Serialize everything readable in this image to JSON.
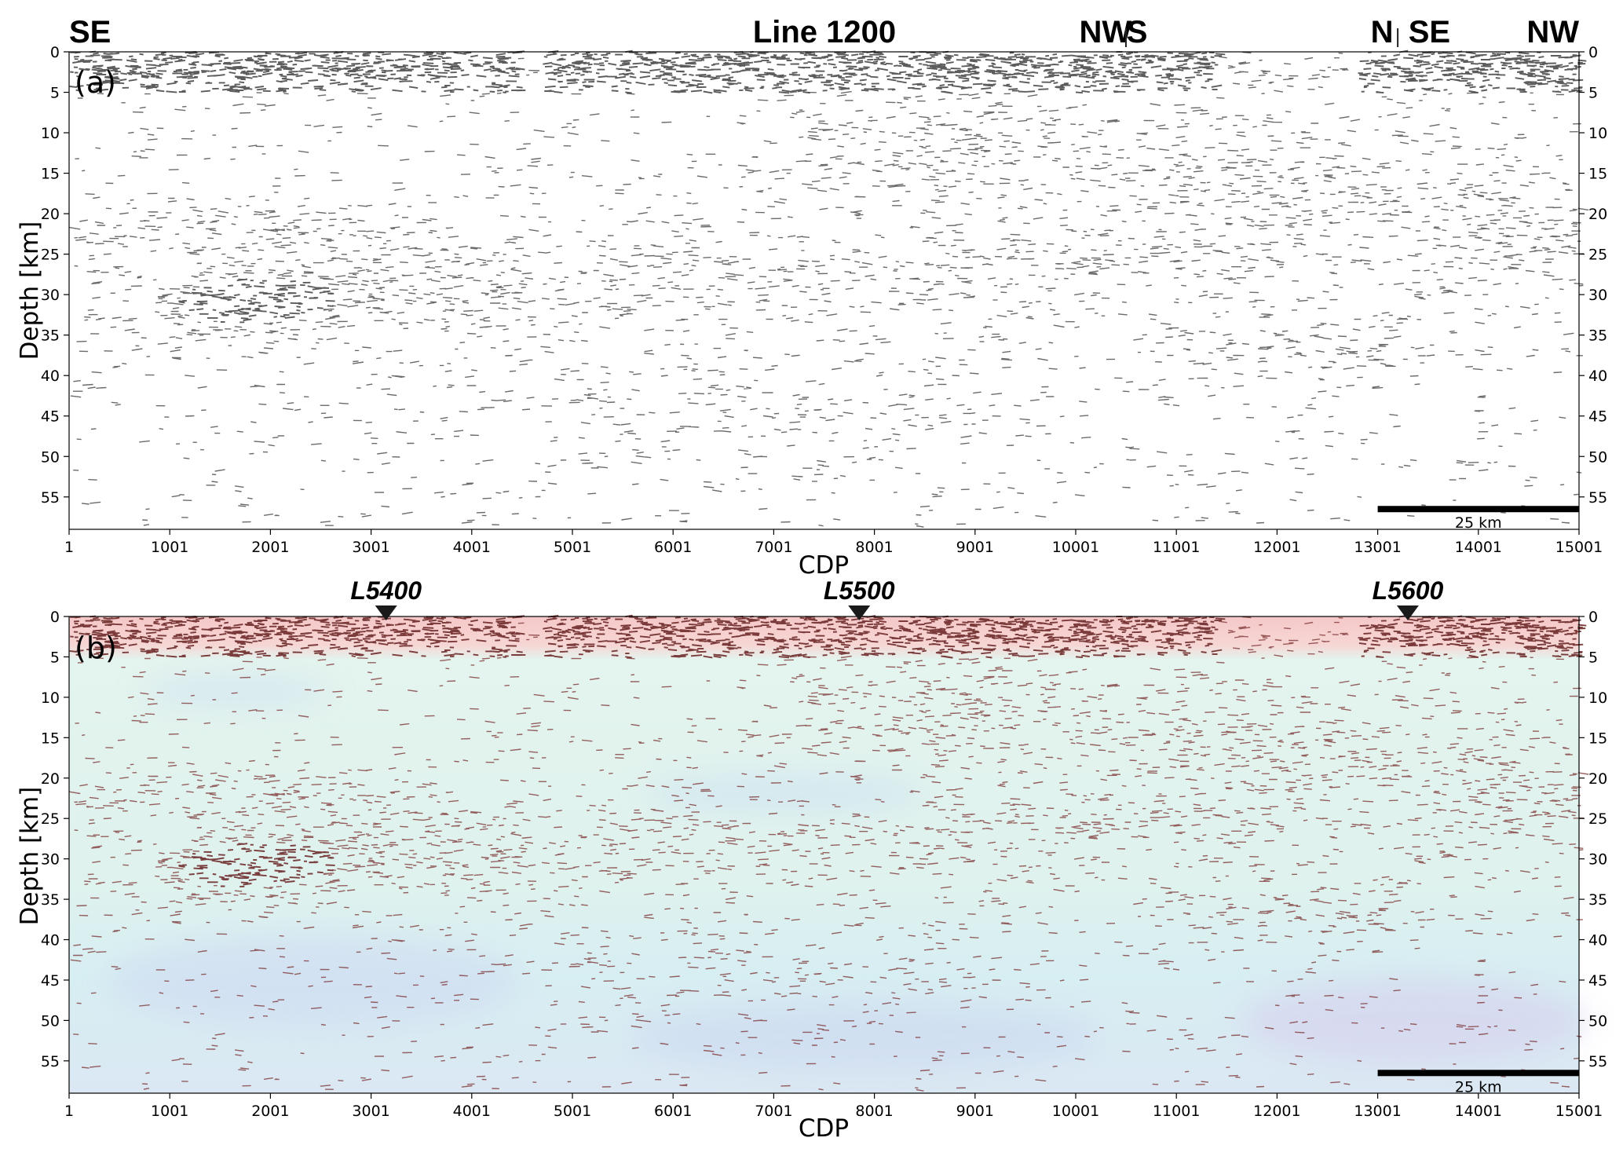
{
  "chart_data": [
    {
      "type": "heatmap",
      "panel": "(a)",
      "title": "Line 1200",
      "xlabel": "CDP",
      "ylabel": "Depth [km]",
      "xlim": [
        1,
        15001
      ],
      "ylim": [
        0,
        59
      ],
      "x_ticks": [
        "1",
        "1001",
        "2001",
        "3001",
        "4001",
        "5001",
        "6001",
        "7001",
        "8001",
        "9001",
        "10001",
        "11001",
        "12001",
        "13001",
        "14001",
        "15001"
      ],
      "y_ticks": [
        "0",
        "5",
        "10",
        "15",
        "20",
        "25",
        "30",
        "35",
        "40",
        "45",
        "50",
        "55"
      ],
      "direction_labels": [
        {
          "text": "SE",
          "cdp": 1
        },
        {
          "text": "NW",
          "cdp": 10400
        },
        {
          "text": "S",
          "cdp": 10600
        },
        {
          "text": "N",
          "cdp": 13000
        },
        {
          "text": "SE",
          "cdp": 13400
        },
        {
          "text": "NW",
          "cdp": 15001
        }
      ],
      "scale_bar": {
        "label": "25 km",
        "cdp_start": 13001,
        "cdp_end": 15001,
        "depth": 56.5
      },
      "colormap": "greyscale"
    },
    {
      "type": "heatmap",
      "panel": "(b)",
      "xlabel": "CDP",
      "ylabel": "Depth [km]",
      "xlim": [
        1,
        15001
      ],
      "ylim": [
        0,
        59
      ],
      "x_ticks": [
        "1",
        "1001",
        "2001",
        "3001",
        "4001",
        "5001",
        "6001",
        "7001",
        "8001",
        "9001",
        "10001",
        "11001",
        "12001",
        "13001",
        "14001",
        "15001"
      ],
      "y_ticks": [
        "0",
        "5",
        "10",
        "15",
        "20",
        "25",
        "30",
        "35",
        "40",
        "45",
        "50",
        "55"
      ],
      "intersections": [
        {
          "label": "L5400",
          "cdp": 3150
        },
        {
          "label": "L5500",
          "cdp": 7850
        },
        {
          "label": "L5600",
          "cdp": 13300
        }
      ],
      "scale_bar": {
        "label": "25 km",
        "cdp_start": 13001,
        "cdp_end": 15001,
        "depth": 56.5
      },
      "colormap": "red-cyan overlay",
      "colors": {
        "reflector": "#7a2a2a",
        "shallow": "#f4c4c4",
        "deep": "#d8f0f0"
      }
    }
  ]
}
